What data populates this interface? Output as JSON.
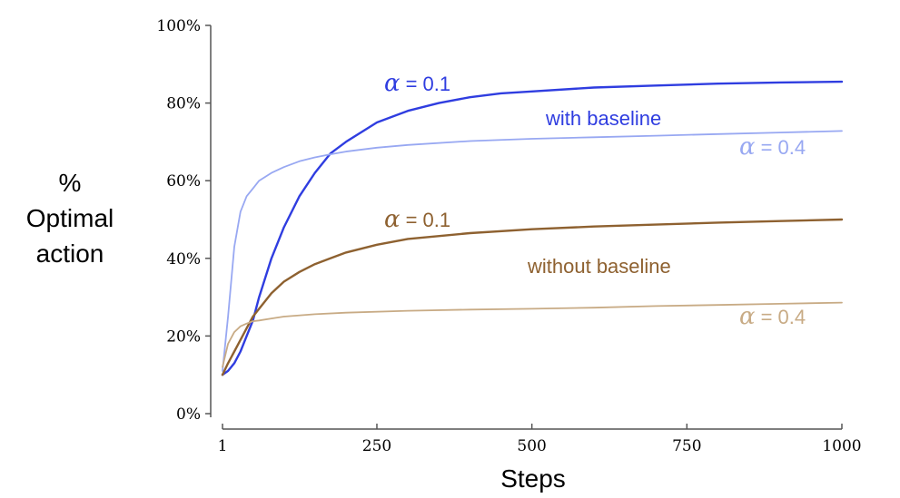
{
  "chart_data": {
    "type": "line",
    "title": "",
    "xlabel": "Steps",
    "ylabel_lines": [
      "%",
      "Optimal",
      "action"
    ],
    "xlim": [
      1,
      1000
    ],
    "ylim": [
      0,
      100
    ],
    "x_ticks": [
      {
        "value": 1,
        "label": "1"
      },
      {
        "value": 250,
        "label": "250"
      },
      {
        "value": 500,
        "label": "500"
      },
      {
        "value": 750,
        "label": "750"
      },
      {
        "value": 1000,
        "label": "1000"
      }
    ],
    "y_ticks": [
      {
        "value": 0,
        "label": "0%"
      },
      {
        "value": 20,
        "label": "20%"
      },
      {
        "value": 40,
        "label": "40%"
      },
      {
        "value": 60,
        "label": "60%"
      },
      {
        "value": 80,
        "label": "80%"
      },
      {
        "value": 100,
        "label": "100%"
      }
    ],
    "grid": false,
    "series": [
      {
        "color": "#2f3de0",
        "x": [
          1,
          10,
          20,
          30,
          40,
          50,
          60,
          80,
          100,
          125,
          150,
          175,
          200,
          250,
          300,
          350,
          400,
          450,
          500,
          600,
          700,
          800,
          900,
          1000
        ],
        "y": [
          10,
          11,
          13,
          16,
          20,
          24,
          30,
          40,
          48,
          56,
          62,
          67,
          70,
          75,
          78,
          80,
          81.5,
          82.5,
          83,
          84,
          84.5,
          85,
          85.3,
          85.5
        ]
      },
      {
        "color": "#98a8f2",
        "x": [
          1,
          10,
          20,
          30,
          40,
          50,
          60,
          80,
          100,
          125,
          150,
          175,
          200,
          250,
          300,
          400,
          500,
          600,
          700,
          800,
          900,
          1000
        ],
        "y": [
          11,
          25,
          43,
          52,
          56,
          58,
          60,
          62,
          63.5,
          65,
          66,
          66.8,
          67.5,
          68.5,
          69.2,
          70.2,
          70.8,
          71.2,
          71.6,
          72,
          72.4,
          72.8
        ]
      },
      {
        "color": "#8e6130",
        "x": [
          1,
          10,
          20,
          30,
          40,
          50,
          60,
          80,
          100,
          125,
          150,
          175,
          200,
          250,
          300,
          400,
          500,
          600,
          700,
          800,
          900,
          1000
        ],
        "y": [
          10,
          13,
          16,
          19,
          22,
          25,
          27,
          31,
          34,
          36.5,
          38.5,
          40,
          41.5,
          43.5,
          45,
          46.5,
          47.5,
          48.2,
          48.7,
          49.2,
          49.6,
          50
        ]
      },
      {
        "color": "#c8ab85",
        "x": [
          1,
          10,
          20,
          30,
          40,
          50,
          60,
          80,
          100,
          150,
          200,
          300,
          400,
          500,
          600,
          700,
          800,
          900,
          1000
        ],
        "y": [
          12,
          18,
          21,
          22.5,
          23.2,
          23.8,
          24,
          24.5,
          25,
          25.6,
          26,
          26.5,
          26.8,
          27,
          27.3,
          27.7,
          28,
          28.3,
          28.6
        ]
      }
    ],
    "annotations": {
      "blue_alpha_01": {
        "symbol": "α",
        "text": "= 0.1"
      },
      "blue_alpha_04": {
        "symbol": "α",
        "text": "= 0.4"
      },
      "with_baseline": "with baseline",
      "brown_alpha_01": {
        "symbol": "α",
        "text": "= 0.1"
      },
      "without_baseline": "without baseline",
      "brown_alpha_04": {
        "symbol": "α",
        "text": "= 0.4"
      }
    }
  }
}
